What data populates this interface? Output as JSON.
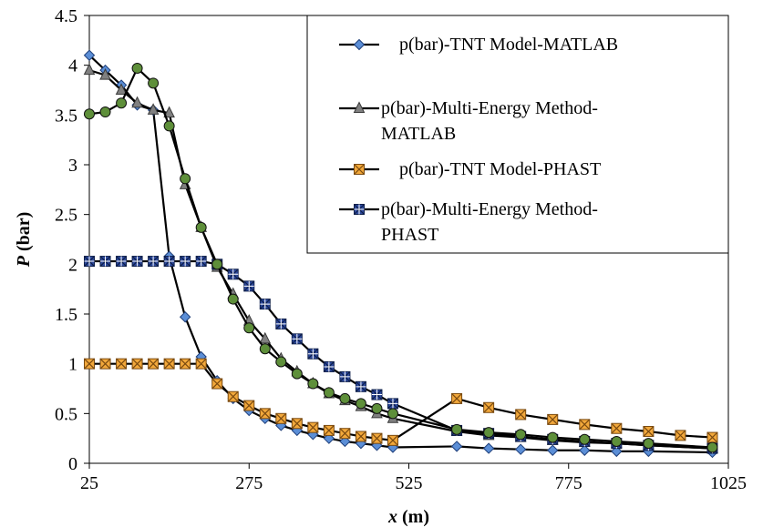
{
  "chart_data": {
    "type": "line",
    "title": "",
    "xlabel": "x (m)",
    "xlabel_var": "x",
    "xlabel_unit": " (m)",
    "ylabel": "P (bar)",
    "ylabel_var": "P",
    "ylabel_unit": " (bar)",
    "xlim": [
      25,
      1025
    ],
    "ylim": [
      0,
      4.5
    ],
    "xticks": [
      25,
      275,
      525,
      775,
      1025
    ],
    "yticks": [
      0,
      0.5,
      1,
      1.5,
      2,
      2.5,
      3,
      3.5,
      4,
      4.5
    ],
    "ytick_labels": [
      "0",
      "0.5",
      "1",
      "1.5",
      "2",
      "2.5",
      "3",
      "3.5",
      "4",
      "4.5"
    ],
    "grid": false,
    "legend_position": "top-right",
    "series": [
      {
        "name": "p(bar)-TNT Model-MATLAB",
        "legend_lines": [
          "p(bar)-TNT Model-MATLAB"
        ],
        "marker": "diamond",
        "marker_fill": "#5B8ED6",
        "marker_stroke": "#1F3F7A",
        "x": [
          25,
          50,
          75,
          100,
          125,
          150,
          175,
          200,
          225,
          250,
          275,
          300,
          325,
          350,
          375,
          400,
          425,
          450,
          475,
          500,
          600,
          650,
          700,
          750,
          800,
          850,
          900,
          1000
        ],
        "y": [
          4.1,
          3.95,
          3.8,
          3.6,
          3.55,
          2.08,
          1.47,
          1.07,
          0.83,
          0.65,
          0.53,
          0.45,
          0.38,
          0.33,
          0.29,
          0.25,
          0.22,
          0.2,
          0.18,
          0.16,
          0.17,
          0.15,
          0.14,
          0.13,
          0.13,
          0.12,
          0.12,
          0.11
        ]
      },
      {
        "name": "p(bar)-Multi-Energy Method-MATLAB",
        "legend_lines": [
          "p(bar)-Multi-Energy Method-",
          "MATLAB"
        ],
        "marker": "triangle",
        "marker_fill": "#808080",
        "marker_stroke": "#3A3A3A",
        "x": [
          25,
          50,
          75,
          100,
          125,
          150,
          175,
          200,
          225,
          250,
          275,
          300,
          325,
          350,
          375,
          400,
          425,
          450,
          475,
          500,
          600,
          650,
          700,
          750,
          800,
          850,
          900,
          1000
        ],
        "y": [
          3.95,
          3.9,
          3.75,
          3.62,
          3.55,
          3.52,
          2.8,
          2.37,
          1.97,
          1.7,
          1.43,
          1.25,
          1.05,
          0.92,
          0.8,
          0.7,
          0.63,
          0.57,
          0.5,
          0.45,
          0.32,
          0.28,
          0.26,
          0.23,
          0.21,
          0.2,
          0.18,
          0.15
        ]
      },
      {
        "name": "p(bar)-TNT Model-PHAST",
        "legend_lines": [
          "p(bar)-TNT Model-PHAST"
        ],
        "marker": "square-x",
        "marker_fill": "#F2A83B",
        "marker_stroke": "#7A4A10",
        "x": [
          25,
          50,
          75,
          100,
          125,
          150,
          175,
          200,
          225,
          250,
          275,
          300,
          325,
          350,
          375,
          400,
          425,
          450,
          475,
          500,
          600,
          650,
          700,
          750,
          800,
          850,
          900,
          950,
          1000
        ],
        "y": [
          1.0,
          1.0,
          1.0,
          1.0,
          1.0,
          1.0,
          1.0,
          1.0,
          0.8,
          0.67,
          0.58,
          0.5,
          0.45,
          0.4,
          0.36,
          0.33,
          0.3,
          0.27,
          0.25,
          0.23,
          0.65,
          0.56,
          0.49,
          0.44,
          0.39,
          0.35,
          0.32,
          0.28,
          0.26
        ]
      },
      {
        "name": "p(bar)-Multi-Energy Method-PHAST",
        "legend_lines": [
          "p(bar)-Multi-Energy Method-",
          "PHAST"
        ],
        "marker": "square-star",
        "marker_fill": "#2E4A9E",
        "marker_stroke": "#0E1F4A",
        "x": [
          25,
          50,
          75,
          100,
          125,
          150,
          175,
          200,
          225,
          250,
          275,
          300,
          325,
          350,
          375,
          400,
          425,
          450,
          475,
          500,
          600,
          650,
          700,
          750,
          800,
          850,
          900,
          1000
        ],
        "y": [
          2.03,
          2.03,
          2.03,
          2.03,
          2.03,
          2.03,
          2.03,
          2.03,
          2.0,
          1.9,
          1.78,
          1.6,
          1.4,
          1.25,
          1.1,
          0.97,
          0.87,
          0.77,
          0.69,
          0.6,
          0.33,
          0.3,
          0.27,
          0.24,
          0.22,
          0.2,
          0.18,
          0.15
        ]
      },
      {
        "name": "",
        "marker": "circle",
        "marker_fill": "#5E8F3A",
        "marker_stroke": "#111111",
        "x": [
          25,
          50,
          75,
          100,
          125,
          150,
          175,
          200,
          225,
          250,
          275,
          300,
          325,
          350,
          375,
          400,
          425,
          450,
          475,
          500,
          600,
          650,
          700,
          750,
          800,
          850,
          900,
          1000
        ],
        "y": [
          3.51,
          3.53,
          3.62,
          3.97,
          3.82,
          3.39,
          2.86,
          2.37,
          2.0,
          1.65,
          1.36,
          1.15,
          1.02,
          0.9,
          0.8,
          0.71,
          0.65,
          0.6,
          0.55,
          0.5,
          0.34,
          0.31,
          0.29,
          0.26,
          0.24,
          0.22,
          0.2,
          0.16
        ]
      }
    ]
  }
}
